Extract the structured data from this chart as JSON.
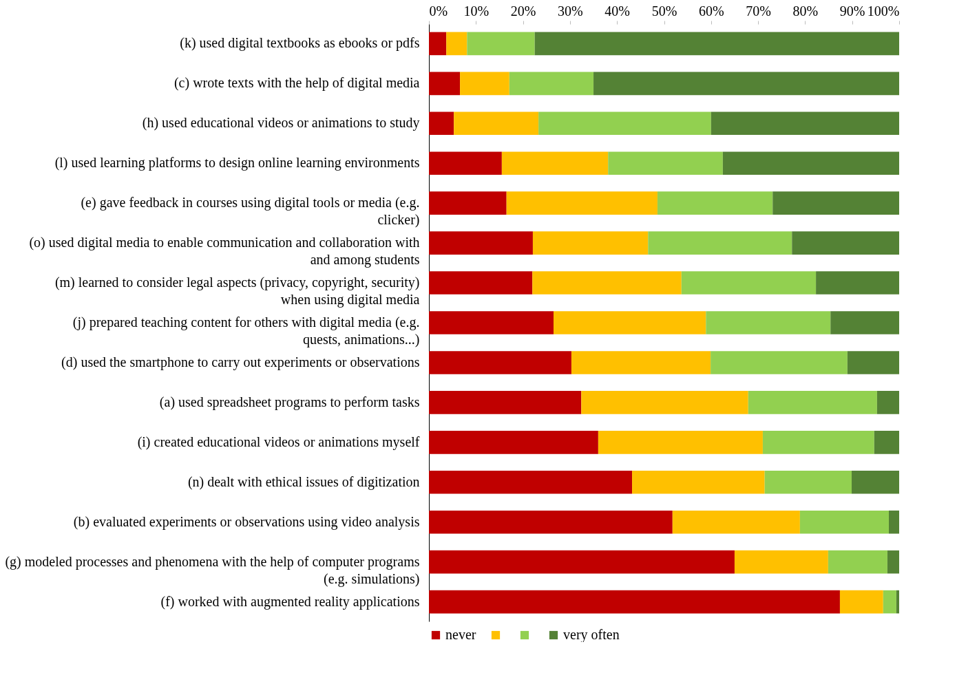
{
  "chart_data": {
    "type": "bar",
    "orientation": "horizontal",
    "stacked": true,
    "categories": [
      "(k) used digital textbooks as ebooks or pdfs",
      "(c) wrote texts with the help of digital media",
      "(h) used educational videos or animations to study",
      "(l) used learning platforms to design online learning environments",
      "(e) gave feedback in courses using digital tools or media (e.g. clicker)",
      "(o) used digital media to enable communication and collaboration with and among students",
      "(m) learned to consider legal aspects (privacy, copyright, security) when using digital media",
      "(j) prepared teaching content for others with digital media (e.g. quests, animations...)",
      "(d) used the smartphone to carry out experiments or observations",
      "(a) used spreadsheet programs to perform tasks",
      "(i) created educational videos or animations myself",
      "(n) dealt with ethical issues of digitization",
      "(b) evaluated experiments or observations using video analysis",
      "(g) modeled processes and phenomena with the help of computer programs (e.g. simulations)",
      "(f) worked with augmented reality applications"
    ],
    "series": [
      {
        "name": "never",
        "color": "#c00000",
        "values": [
          3.7,
          6.6,
          5.3,
          15.5,
          16.5,
          22.1,
          22.0,
          26.5,
          30.3,
          32.4,
          36.0,
          43.2,
          51.8,
          65.0,
          87.4
        ]
      },
      {
        "color": "#ffc000",
        "values": [
          4.4,
          10.5,
          18.0,
          22.6,
          32.1,
          24.5,
          31.7,
          32.4,
          29.6,
          35.5,
          35.0,
          28.2,
          27.1,
          19.9,
          9.2
        ]
      },
      {
        "color": "#92d050",
        "values": [
          14.4,
          17.9,
          36.7,
          24.4,
          24.5,
          30.6,
          28.6,
          26.5,
          29.1,
          27.4,
          23.7,
          18.5,
          18.9,
          12.6,
          2.8
        ]
      },
      {
        "name": "very often",
        "color": "#548235",
        "values": [
          77.5,
          65.0,
          40.0,
          37.5,
          26.9,
          22.8,
          17.7,
          14.6,
          11.0,
          4.7,
          5.3,
          10.1,
          2.2,
          2.5,
          0.6
        ]
      }
    ],
    "xlim": [
      0,
      100
    ],
    "xticks": [
      {
        "value": 0,
        "label": "0%"
      },
      {
        "value": 10,
        "label": "10%"
      },
      {
        "value": 20,
        "label": "20%"
      },
      {
        "value": 30,
        "label": "30%"
      },
      {
        "value": 40,
        "label": "40%"
      },
      {
        "value": 50,
        "label": "50%"
      },
      {
        "value": 60,
        "label": "60%"
      },
      {
        "value": 70,
        "label": "70%"
      },
      {
        "value": 80,
        "label": "80%"
      },
      {
        "value": 90,
        "label": "90%"
      },
      {
        "value": 100,
        "label": "100%"
      }
    ],
    "grid": false,
    "legend": "bottom"
  }
}
